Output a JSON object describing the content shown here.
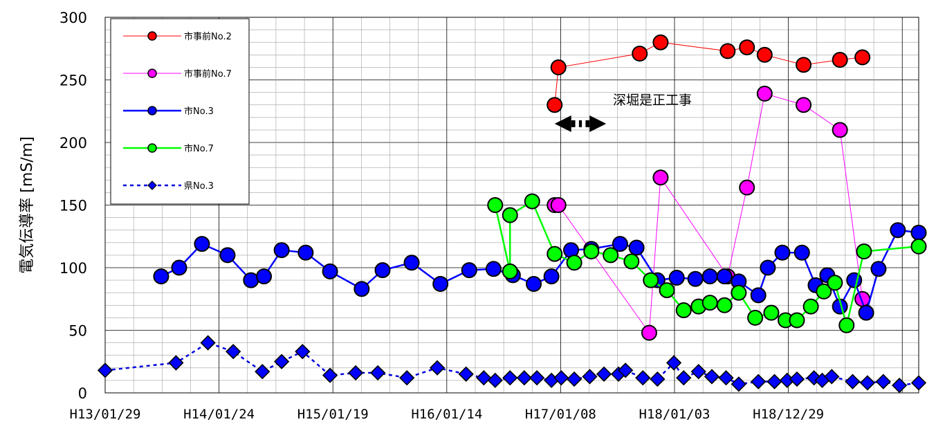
{
  "chart_data": {
    "type": "line",
    "ylabel": "電気伝導率 [mS/m]",
    "xlabel": "",
    "ylim": [
      0,
      300
    ],
    "yticks": [
      0,
      50,
      100,
      150,
      200,
      250,
      300
    ],
    "xlim": [
      "2001-01-29",
      "2008-02-14"
    ],
    "xtick_labels": [
      {
        "date": "2001-01-29",
        "label": "H13/01/29"
      },
      {
        "date": "2002-01-24",
        "label": "H14/01/24"
      },
      {
        "date": "2003-01-19",
        "label": "H15/01/19"
      },
      {
        "date": "2004-01-14",
        "label": "H16/01/14"
      },
      {
        "date": "2005-01-08",
        "label": "H17/01/08"
      },
      {
        "date": "2006-01-03",
        "label": "H18/01/03"
      },
      {
        "date": "2006-12-29",
        "label": "H18/12/29"
      }
    ],
    "grid": true,
    "legend_position": "top-left",
    "annotation": {
      "text": "深堀是正工事",
      "from": "2004-12-20",
      "to": "2005-06-01",
      "y": 215
    },
    "series": [
      {
        "name": "市事前No.2",
        "color": "#ff0000",
        "line_color": "#ff0000",
        "marker": "circle",
        "dash": false,
        "line_width": 1,
        "points": [
          [
            "2004-12-20",
            230
          ],
          [
            "2005-01-01",
            260
          ],
          [
            "2005-09-15",
            271
          ],
          [
            "2005-11-20",
            280
          ],
          [
            "2006-06-20",
            273
          ],
          [
            "2006-08-20",
            276
          ],
          [
            "2006-10-15",
            270
          ],
          [
            "2007-02-15",
            262
          ],
          [
            "2007-06-10",
            266
          ],
          [
            "2007-08-20",
            268
          ]
        ]
      },
      {
        "name": "市事前No.7",
        "color": "#ff00ff",
        "line_color": "#ff00ff",
        "marker": "circle",
        "dash": false,
        "line_width": 1,
        "points": [
          [
            "2004-12-20",
            150
          ],
          [
            "2005-01-01",
            150
          ],
          [
            "2005-10-15",
            48
          ],
          [
            "2005-11-20",
            172
          ],
          [
            "2006-06-20",
            93
          ],
          [
            "2006-08-20",
            164
          ],
          [
            "2006-10-15",
            239
          ],
          [
            "2007-02-15",
            230
          ],
          [
            "2007-06-10",
            210
          ],
          [
            "2007-08-20",
            75
          ]
        ]
      },
      {
        "name": "市No.3",
        "color": "#0000ff",
        "line_color": "#0000ff",
        "marker": "circle",
        "dash": false,
        "line_width": 2.5,
        "points": [
          [
            "2001-07-25",
            93
          ],
          [
            "2001-09-20",
            100
          ],
          [
            "2001-12-01",
            119
          ],
          [
            "2002-02-20",
            110
          ],
          [
            "2002-05-05",
            90
          ],
          [
            "2002-06-15",
            93
          ],
          [
            "2002-08-10",
            114
          ],
          [
            "2002-10-25",
            112
          ],
          [
            "2003-01-10",
            97
          ],
          [
            "2003-04-20",
            83
          ],
          [
            "2003-06-25",
            98
          ],
          [
            "2003-09-25",
            104
          ],
          [
            "2003-12-25",
            87
          ],
          [
            "2004-03-25",
            98
          ],
          [
            "2004-06-10",
            99
          ],
          [
            "2004-08-10",
            94
          ],
          [
            "2004-10-15",
            87
          ],
          [
            "2004-12-10",
            93
          ],
          [
            "2005-02-10",
            114
          ],
          [
            "2005-04-15",
            115
          ],
          [
            "2005-07-15",
            119
          ],
          [
            "2005-09-05",
            116
          ],
          [
            "2005-11-10",
            90
          ],
          [
            "2006-01-10",
            92
          ],
          [
            "2006-03-10",
            91
          ],
          [
            "2006-04-25",
            93
          ],
          [
            "2006-06-10",
            93
          ],
          [
            "2006-07-25",
            89
          ],
          [
            "2006-09-25",
            78
          ],
          [
            "2006-10-25",
            100
          ],
          [
            "2006-12-10",
            112
          ],
          [
            "2007-02-10",
            112
          ],
          [
            "2007-03-25",
            86
          ],
          [
            "2007-05-01",
            94
          ],
          [
            "2007-06-10",
            69
          ],
          [
            "2007-07-25",
            90
          ],
          [
            "2007-09-01",
            64
          ],
          [
            "2007-10-10",
            99
          ],
          [
            "2007-12-10",
            130
          ],
          [
            "2008-02-14",
            128
          ]
        ]
      },
      {
        "name": "市No.7",
        "color": "#00ff00",
        "line_color": "#00ff00",
        "marker": "circle",
        "dash": false,
        "line_width": 2.5,
        "points": [
          [
            "2004-06-15",
            150
          ],
          [
            "2004-08-01",
            97
          ],
          [
            "2004-08-01",
            142
          ],
          [
            "2004-10-10",
            153
          ],
          [
            "2004-12-20",
            111
          ],
          [
            "2005-02-20",
            104
          ],
          [
            "2005-04-15",
            113
          ],
          [
            "2005-06-15",
            110
          ],
          [
            "2005-08-20",
            105
          ],
          [
            "2005-10-20",
            90
          ],
          [
            "2005-12-10",
            82
          ],
          [
            "2006-02-01",
            66
          ],
          [
            "2006-03-20",
            69
          ],
          [
            "2006-04-25",
            72
          ],
          [
            "2006-06-10",
            70
          ],
          [
            "2006-07-25",
            80
          ],
          [
            "2006-09-15",
            60
          ],
          [
            "2006-11-05",
            64
          ],
          [
            "2006-12-20",
            58
          ],
          [
            "2007-01-25",
            58
          ],
          [
            "2007-03-10",
            69
          ],
          [
            "2007-04-20",
            81
          ],
          [
            "2007-05-25",
            88
          ],
          [
            "2007-07-01",
            54
          ],
          [
            "2007-08-25",
            113
          ],
          [
            "2008-02-14",
            117
          ]
        ]
      },
      {
        "name": "県No.3",
        "color": "#0000ff",
        "line_color": "#0000dd",
        "marker": "diamond",
        "dash": true,
        "line_width": 2.5,
        "points": [
          [
            "2001-01-29",
            18
          ],
          [
            "2001-09-10",
            24
          ],
          [
            "2001-12-20",
            40
          ],
          [
            "2002-03-10",
            33
          ],
          [
            "2002-06-10",
            17
          ],
          [
            "2002-08-10",
            25
          ],
          [
            "2002-10-15",
            33
          ],
          [
            "2003-01-10",
            14
          ],
          [
            "2003-04-01",
            16
          ],
          [
            "2003-06-10",
            16
          ],
          [
            "2003-09-10",
            12
          ],
          [
            "2003-12-15",
            20
          ],
          [
            "2004-03-15",
            15
          ],
          [
            "2004-05-10",
            12
          ],
          [
            "2004-06-15",
            10
          ],
          [
            "2004-08-01",
            12
          ],
          [
            "2004-09-15",
            12
          ],
          [
            "2004-10-25",
            12
          ],
          [
            "2004-12-10",
            10
          ],
          [
            "2005-01-10",
            12
          ],
          [
            "2005-02-20",
            11
          ],
          [
            "2005-04-10",
            13
          ],
          [
            "2005-05-25",
            15
          ],
          [
            "2005-07-10",
            15
          ],
          [
            "2005-08-01",
            18
          ],
          [
            "2005-09-25",
            12
          ],
          [
            "2005-11-10",
            11
          ],
          [
            "2006-01-01",
            24
          ],
          [
            "2006-02-01",
            12
          ],
          [
            "2006-03-20",
            17
          ],
          [
            "2006-05-01",
            13
          ],
          [
            "2006-06-15",
            12
          ],
          [
            "2006-07-25",
            7
          ],
          [
            "2006-09-25",
            9
          ],
          [
            "2006-11-15",
            9
          ],
          [
            "2006-12-25",
            10
          ],
          [
            "2007-01-25",
            11
          ],
          [
            "2007-03-20",
            12
          ],
          [
            "2007-04-15",
            10
          ],
          [
            "2007-05-15",
            13
          ],
          [
            "2007-07-20",
            9
          ],
          [
            "2007-09-05",
            8
          ],
          [
            "2007-10-25",
            9
          ],
          [
            "2007-12-15",
            6
          ],
          [
            "2008-02-14",
            8
          ]
        ]
      }
    ]
  }
}
